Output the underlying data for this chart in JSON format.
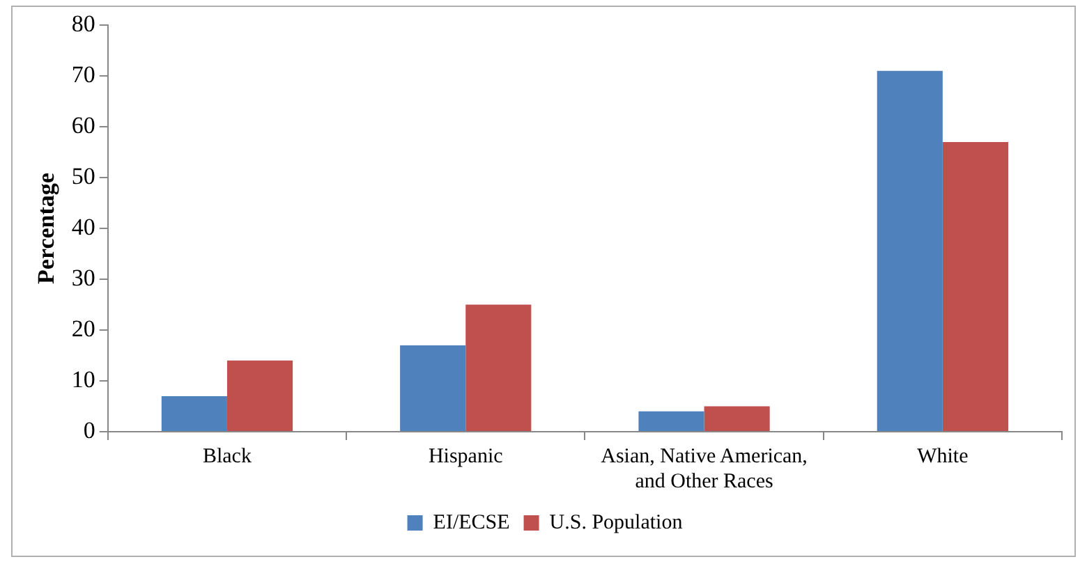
{
  "chart_data": {
    "type": "bar",
    "ylabel": "Percentage",
    "categories": [
      "Black",
      "Hispanic",
      "Asian, Native American, and Other Races",
      "White"
    ],
    "series": [
      {
        "name": "EI/ECSE",
        "color": "#4f81bd",
        "values": [
          7,
          17,
          4,
          71
        ]
      },
      {
        "name": "U.S. Population",
        "color": "#c0504d",
        "values": [
          14,
          25,
          5,
          57
        ]
      }
    ],
    "ylim": [
      0,
      80
    ],
    "yticks": [
      0,
      10,
      20,
      30,
      40,
      50,
      60,
      70,
      80
    ],
    "grid": false,
    "legend": "bottom"
  }
}
